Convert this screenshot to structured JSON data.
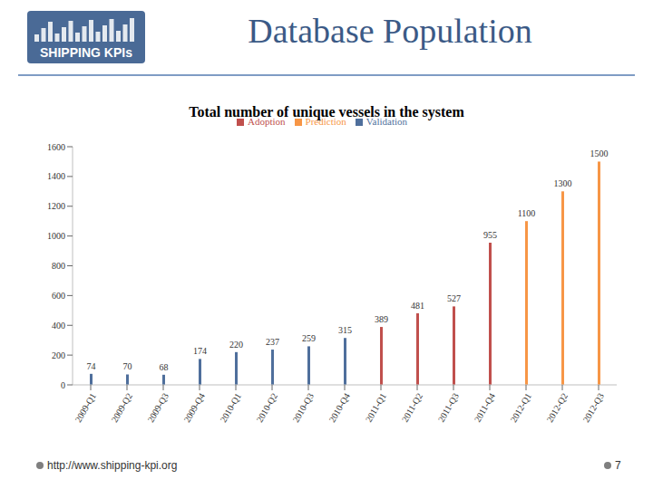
{
  "slide": {
    "title": "Database Population",
    "logo": "SHIPPING KPIs",
    "footer": "http://www.shipping-kpi.org",
    "page": "7"
  },
  "chart_data": {
    "type": "bar",
    "title": "Total number of unique vessels in the system",
    "categories": [
      "2009-Q1",
      "2009-Q2",
      "2009-Q3",
      "2009-Q4",
      "2010-Q1",
      "2010-Q2",
      "2010-Q3",
      "2010-Q4",
      "2011-Q1",
      "2011-Q2",
      "2011-Q3",
      "2011-Q4",
      "2012-Q1",
      "2012-Q2",
      "2012-Q3"
    ],
    "series": [
      {
        "name": "Validation",
        "color": "#4f6f9c",
        "values": [
          74,
          70,
          68,
          174,
          220,
          237,
          259,
          315,
          null,
          null,
          null,
          null,
          null,
          null,
          null
        ]
      },
      {
        "name": "Adoption",
        "color": "#c0504d",
        "values": [
          null,
          null,
          null,
          null,
          null,
          null,
          null,
          null,
          389,
          481,
          527,
          955,
          null,
          null,
          null
        ]
      },
      {
        "name": "Prediction",
        "color": "#f79646",
        "values": [
          null,
          null,
          null,
          null,
          null,
          null,
          null,
          null,
          null,
          null,
          null,
          null,
          1100,
          1300,
          1500
        ]
      }
    ],
    "ylim": [
      0,
      1600
    ],
    "yticks": [
      0,
      200,
      400,
      600,
      800,
      1000,
      1200,
      1400,
      1600
    ],
    "grid": false,
    "stacked": true,
    "data_labels": true,
    "legend": "top"
  }
}
